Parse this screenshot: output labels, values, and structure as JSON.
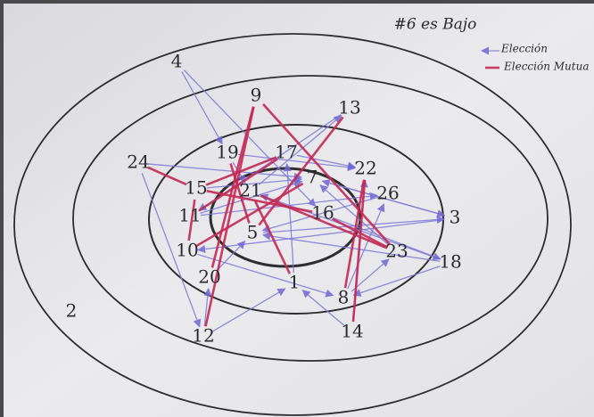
{
  "header": {
    "title": "#6 es Bajo"
  },
  "legend": {
    "items": [
      {
        "label": "Elección"
      },
      {
        "label": "Elección Mutua"
      }
    ]
  },
  "nodes": [
    {
      "label": "4"
    },
    {
      "label": "9"
    },
    {
      "label": "13"
    },
    {
      "label": "24"
    },
    {
      "label": "19"
    },
    {
      "label": "17"
    },
    {
      "label": "7"
    },
    {
      "label": "22"
    },
    {
      "label": "26"
    },
    {
      "label": "15"
    },
    {
      "label": "21"
    },
    {
      "label": "11"
    },
    {
      "label": "16"
    },
    {
      "label": "3"
    },
    {
      "label": "5"
    },
    {
      "label": "10"
    },
    {
      "label": "23"
    },
    {
      "label": "18"
    },
    {
      "label": "20"
    },
    {
      "label": "1"
    },
    {
      "label": "8"
    },
    {
      "label": "14"
    },
    {
      "label": "12"
    },
    {
      "label": "2"
    }
  ]
}
